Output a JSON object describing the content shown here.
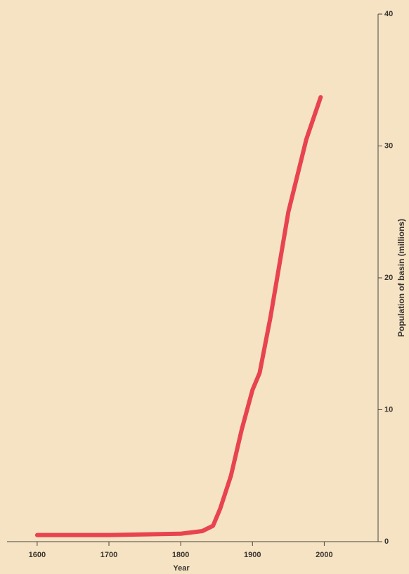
{
  "chart_data": {
    "type": "line",
    "x": [
      1600,
      1700,
      1800,
      1830,
      1845,
      1855,
      1870,
      1885,
      1900,
      1910,
      1925,
      1950,
      1975,
      1995
    ],
    "series": [
      {
        "name": "Population",
        "color": "#e8434f",
        "values": [
          0.5,
          0.5,
          0.6,
          0.8,
          1.2,
          2.5,
          5,
          8.5,
          11.5,
          12.8,
          17,
          25,
          30.5,
          33.7
        ]
      }
    ],
    "xlim": [
      1558,
      2075
    ],
    "ylim": [
      0,
      40
    ],
    "xticks": [
      1600,
      1700,
      1800,
      1900,
      2000
    ],
    "yticks": [
      0,
      10,
      20,
      30,
      40
    ],
    "xlabel": "Year",
    "ylabel": "Population of basin (millions)"
  }
}
